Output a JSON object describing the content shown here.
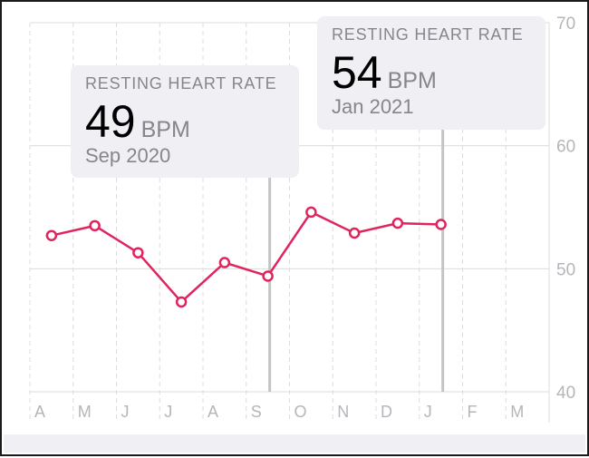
{
  "chart_data": {
    "type": "line",
    "categories": [
      "A",
      "M",
      "J",
      "J",
      "A",
      "S",
      "O",
      "N",
      "D",
      "J",
      "F",
      "M"
    ],
    "series": [
      {
        "values": [
          52.7,
          53.5,
          51.3,
          47.3,
          50.5,
          49.4,
          54.6,
          52.9,
          53.7,
          53.6,
          null,
          null
        ],
        "color": "#e0245e"
      }
    ],
    "yticks": [
      40,
      50,
      60,
      70
    ],
    "ylim": [
      40,
      70
    ],
    "grid": true,
    "y_axis_side": "right"
  },
  "tooltips": [
    {
      "label": "RESTING HEART RATE",
      "value": "49",
      "unit": "BPM",
      "date": "Sep 2020",
      "index": 5
    },
    {
      "label": "RESTING HEART RATE",
      "value": "54",
      "unit": "BPM",
      "date": "Jan 2021",
      "index": 9
    }
  ],
  "colors": {
    "line": "#e0245e",
    "grid": "#dcdcdc",
    "axis_text": "#b5b5ba",
    "tooltip_bg": "#efeff4",
    "selection_line": "#c4c4c4"
  }
}
